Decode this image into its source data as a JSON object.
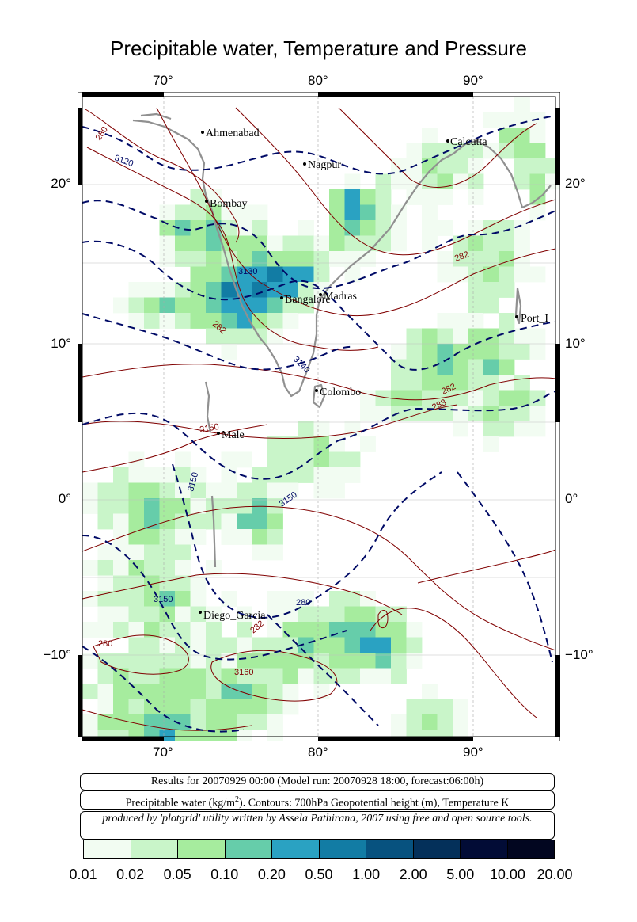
{
  "title": "Precipitable water, Temperature and Pressure",
  "lon_ticks": [
    "70°",
    "80°",
    "90°"
  ],
  "lat_ticks": [
    "20°",
    "10°",
    "0°",
    "−10°"
  ],
  "cities": [
    {
      "name": "Ahmenabad"
    },
    {
      "name": "Calcutta"
    },
    {
      "name": "Nagpur"
    },
    {
      "name": "Bombay"
    },
    {
      "name": "Madras"
    },
    {
      "name": "Bangalore"
    },
    {
      "name": "Port_I"
    },
    {
      "name": "Colombo"
    },
    {
      "name": "Male"
    },
    {
      "name": "Diego_Garcia"
    }
  ],
  "contour_labels": [
    "280",
    "3120",
    "3130",
    "282",
    "3140",
    "282",
    "283",
    "282",
    "3150",
    "3150",
    "3150",
    "3150",
    "280",
    "282",
    "280",
    "3160"
  ],
  "info": {
    "run_line": "Results for 20070929 00:00 (Model run: 20070928 18:00, forecast:06:00h)",
    "legend_pre": "Precipitable water (kg/m",
    "legend_sup": "2",
    "legend_post": ").  Contours: 700hPa Geopotential height (m), Temperature K",
    "credit": "produced by 'plotgrid' utility written by Assela Pathirana, 2007 using free and open source tools."
  },
  "colorbar": {
    "colors": [
      "#f2fcf2",
      "#c9f5c9",
      "#a6ec9e",
      "#66cdaa",
      "#2aa2c2",
      "#127ca4",
      "#07527f",
      "#04305a",
      "#020c36",
      "#020620",
      "#000008"
    ],
    "labels": [
      "0.01",
      "0.02",
      "0.05",
      "0.10",
      "0.20",
      "0.50",
      "1.00",
      "2.00",
      "5.00",
      "10.00",
      "20.00"
    ]
  },
  "map_extent": {
    "lon_min": 65,
    "lon_max": 96,
    "lat_min": -15.5,
    "lat_max": 26
  }
}
